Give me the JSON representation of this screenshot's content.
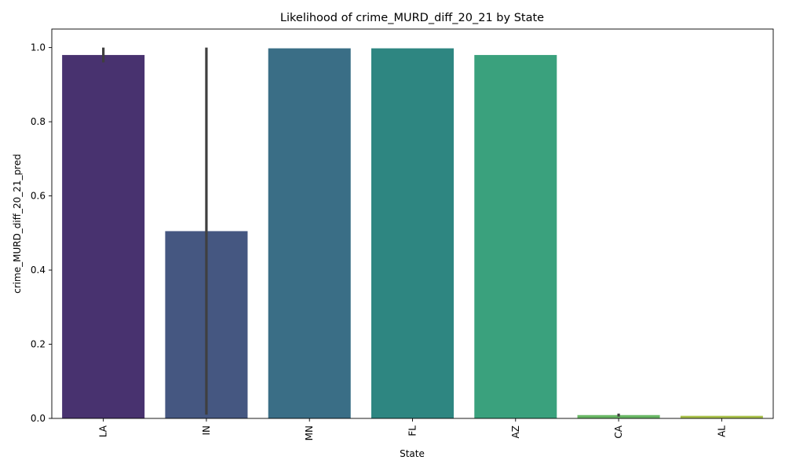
{
  "chart_data": {
    "type": "bar",
    "title": "Likelihood of crime_MURD_diff_20_21 by State",
    "xlabel": "State",
    "ylabel": "crime_MURD_diff_20_21_pred",
    "categories": [
      "LA",
      "IN",
      "MN",
      "FL",
      "AZ",
      "CA",
      "AL"
    ],
    "values": [
      0.98,
      0.505,
      0.998,
      0.998,
      0.98,
      0.009,
      0.007
    ],
    "error_bars": [
      [
        0.96,
        1.0
      ],
      [
        0.01,
        1.0
      ],
      null,
      null,
      null,
      [
        0.005,
        0.013
      ],
      null
    ],
    "ylim": [
      0,
      1.05
    ],
    "yticks": [
      0.0,
      0.2,
      0.4,
      0.6,
      0.8,
      1.0
    ],
    "ytick_labels": [
      "0.0",
      "0.2",
      "0.4",
      "0.6",
      "0.8",
      "1.0"
    ],
    "colors": [
      "#48326f",
      "#455781",
      "#3a6e86",
      "#2e8681",
      "#3aa17d",
      "#6ab866",
      "#a9c14a"
    ],
    "error_color": "#3f3f3f",
    "grid": false,
    "legend": "none"
  }
}
